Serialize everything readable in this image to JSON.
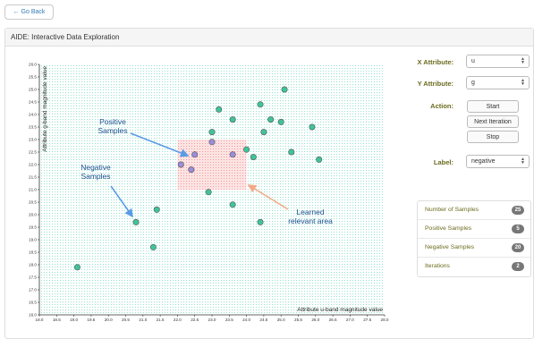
{
  "nav": {
    "back_label": "← Go Back"
  },
  "panel": {
    "title": "AIDE: Interactive Data Exploration"
  },
  "controls": {
    "x_attr_label": "X Attribute:",
    "x_attr_value": "u",
    "y_attr_label": "Y Attribute:",
    "y_attr_value": "g",
    "action_label": "Action:",
    "start_label": "Start",
    "next_label": "Next Iteration",
    "stop_label": "Stop",
    "label_label": "Label:",
    "label_value": "negative"
  },
  "stats": [
    {
      "label": "Number of Samples",
      "value": "25"
    },
    {
      "label": "Positive Samples",
      "value": "5"
    },
    {
      "label": "Negative Samples",
      "value": "20"
    },
    {
      "label": "Iterations",
      "value": "2"
    }
  ],
  "chart_data": {
    "type": "scatter",
    "xlabel": "Attribute u-band magnitude value",
    "ylabel": "Attribute g-band magnitude value",
    "xlim": [
      18.0,
      28.0
    ],
    "ylim": [
      16.0,
      26.0
    ],
    "x_ticks": [
      "18.0",
      "18.5",
      "19.0",
      "19.5",
      "20.0",
      "20.5",
      "21.0",
      "21.5",
      "22.0",
      "22.5",
      "23.0",
      "23.5",
      "24.0",
      "24.5",
      "25.0",
      "25.5",
      "26.0",
      "26.5",
      "27.0",
      "27.5",
      "28.0"
    ],
    "y_ticks": [
      "16.0",
      "16.5",
      "17.0",
      "17.5",
      "18.0",
      "18.5",
      "19.0",
      "19.5",
      "20.0",
      "20.5",
      "21.0",
      "21.5",
      "22.0",
      "22.5",
      "23.0",
      "23.5",
      "24.0",
      "24.5",
      "25.0",
      "25.5",
      "26.0"
    ],
    "relevant_area": {
      "x": [
        22.0,
        24.0
      ],
      "y": [
        21.0,
        23.0
      ]
    },
    "series": [
      {
        "label": "positive",
        "x": [
          22.5,
          23.0,
          22.1,
          22.4,
          23.6
        ],
        "y": [
          22.4,
          22.9,
          22.0,
          21.8,
          22.4
        ]
      },
      {
        "label": "negative",
        "x": [
          19.1,
          20.8,
          21.3,
          21.4,
          22.9,
          23.2,
          23.0,
          23.6,
          23.6,
          24.0,
          24.2,
          24.4,
          24.5,
          24.7,
          25.0,
          25.1,
          25.3,
          25.9,
          26.1,
          24.4
        ],
        "y": [
          17.9,
          19.7,
          18.7,
          20.2,
          20.9,
          24.2,
          23.3,
          23.8,
          20.4,
          22.6,
          22.3,
          24.4,
          23.3,
          23.8,
          23.7,
          25.0,
          22.5,
          23.5,
          22.2,
          19.7
        ]
      }
    ],
    "annotations": [
      {
        "text_lines": [
          "Positive",
          "Samples"
        ]
      },
      {
        "text_lines": [
          "Negative",
          "Samples"
        ]
      },
      {
        "text_lines": [
          "Learned",
          "relevant area"
        ]
      }
    ],
    "colors": {
      "negative": "#3fc49a",
      "positive": "#9b8dd8",
      "point_stroke": "#555555",
      "grid": "#5fd9b6",
      "relevant": "#f08080",
      "arrow_blue": "#5a9be6",
      "arrow_salmon": "#f4a987"
    }
  }
}
